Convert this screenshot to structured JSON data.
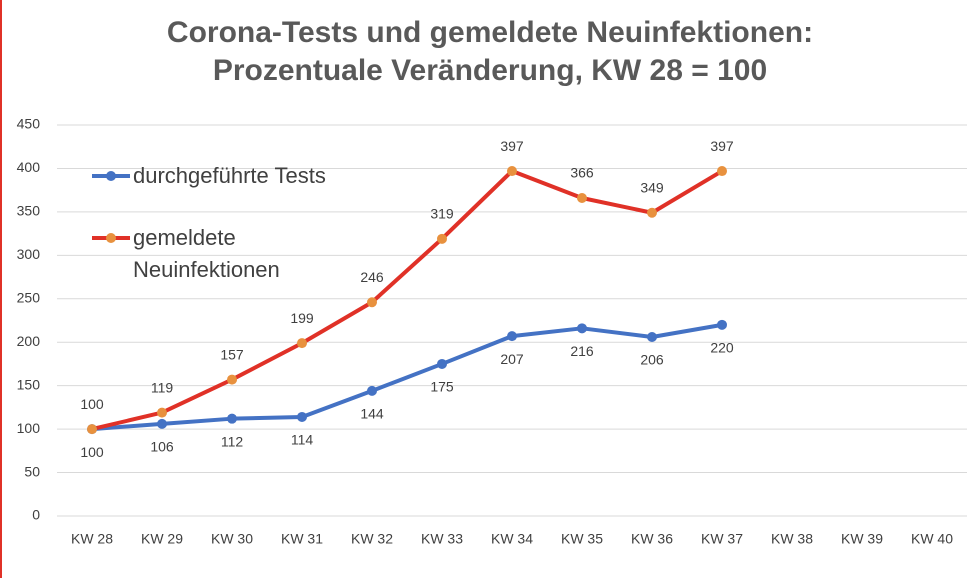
{
  "chart_data": {
    "type": "line",
    "title": "Corona-Tests und gemeldete Neuinfektionen: Prozentuale Veränderung, KW 28 = 100",
    "categories": [
      "KW 28",
      "KW 29",
      "KW 30",
      "KW 31",
      "KW 32",
      "KW 33",
      "KW 34",
      "KW 35",
      "KW 36",
      "KW 37",
      "KW 38",
      "KW 39",
      "KW 40"
    ],
    "series": [
      {
        "name": "durchgeführte Tests",
        "color": "#4472c4",
        "marker_color": "#4472c4",
        "label_position": "below",
        "values": [
          100,
          106,
          112,
          114,
          144,
          175,
          207,
          216,
          206,
          220,
          null,
          null,
          null
        ]
      },
      {
        "name": "gemeldete Neuinfektionen",
        "color": "#e03127",
        "marker_color": "#e8913e",
        "label_position": "above",
        "values": [
          100,
          119,
          157,
          199,
          246,
          319,
          397,
          366,
          349,
          397,
          null,
          null,
          null
        ]
      }
    ],
    "ylim": [
      0,
      450
    ],
    "yticks": [
      0,
      50,
      100,
      150,
      200,
      250,
      300,
      350,
      400,
      450
    ],
    "grid": true,
    "legend": "upper left"
  }
}
